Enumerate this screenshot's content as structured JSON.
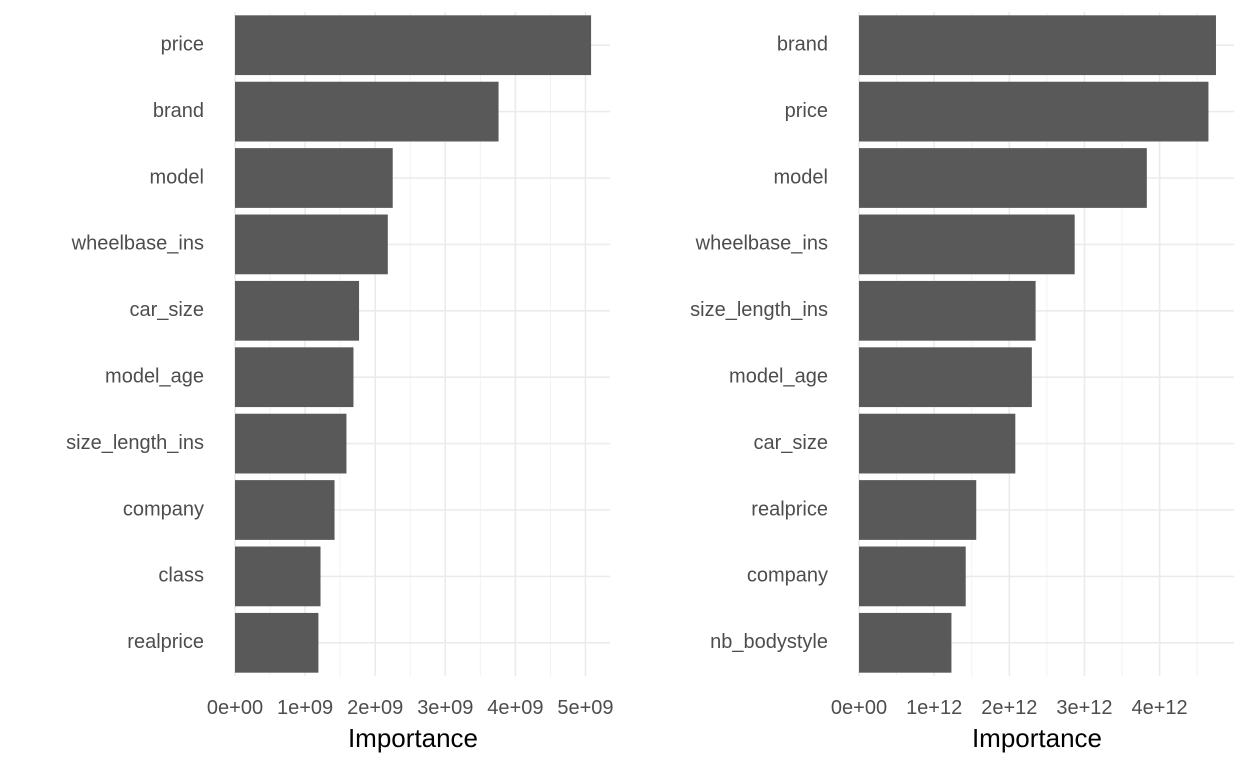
{
  "chart_data": [
    {
      "type": "bar",
      "orientation": "horizontal",
      "categories": [
        "price",
        "brand",
        "model",
        "wheelbase_ins",
        "car_size",
        "model_age",
        "size_length_ins",
        "company",
        "class",
        "realprice"
      ],
      "values": [
        5080000000,
        3760000000,
        2250000000,
        2180000000,
        1770000000,
        1690000000,
        1590000000,
        1420000000,
        1220000000,
        1190000000
      ],
      "xlabel": "Importance",
      "ylabel": "",
      "xlim": [
        0,
        5350000000
      ],
      "xticks": [
        0,
        1000000000,
        2000000000,
        3000000000,
        4000000000,
        5000000000
      ],
      "xtick_labels": [
        "0e+00",
        "1e+09",
        "2e+09",
        "3e+09",
        "4e+09",
        "5e+09"
      ],
      "grid": true,
      "bar_color": "#595959"
    },
    {
      "type": "bar",
      "orientation": "horizontal",
      "categories": [
        "brand",
        "price",
        "model",
        "wheelbase_ins",
        "size_length_ins",
        "model_age",
        "car_size",
        "realprice",
        "company",
        "nb_bodystyle"
      ],
      "values": [
        4750000000000,
        4650000000000,
        3830000000000,
        2870000000000,
        2350000000000,
        2300000000000,
        2080000000000,
        1560000000000,
        1420000000000,
        1230000000000
      ],
      "xlabel": "Importance",
      "ylabel": "",
      "xlim": [
        0,
        4990000000000
      ],
      "xticks": [
        0,
        1000000000000,
        2000000000000,
        3000000000000,
        4000000000000
      ],
      "xtick_labels": [
        "0e+00",
        "1e+12",
        "2e+12",
        "3e+12",
        "4e+12"
      ],
      "grid": true,
      "bar_color": "#595959"
    }
  ]
}
